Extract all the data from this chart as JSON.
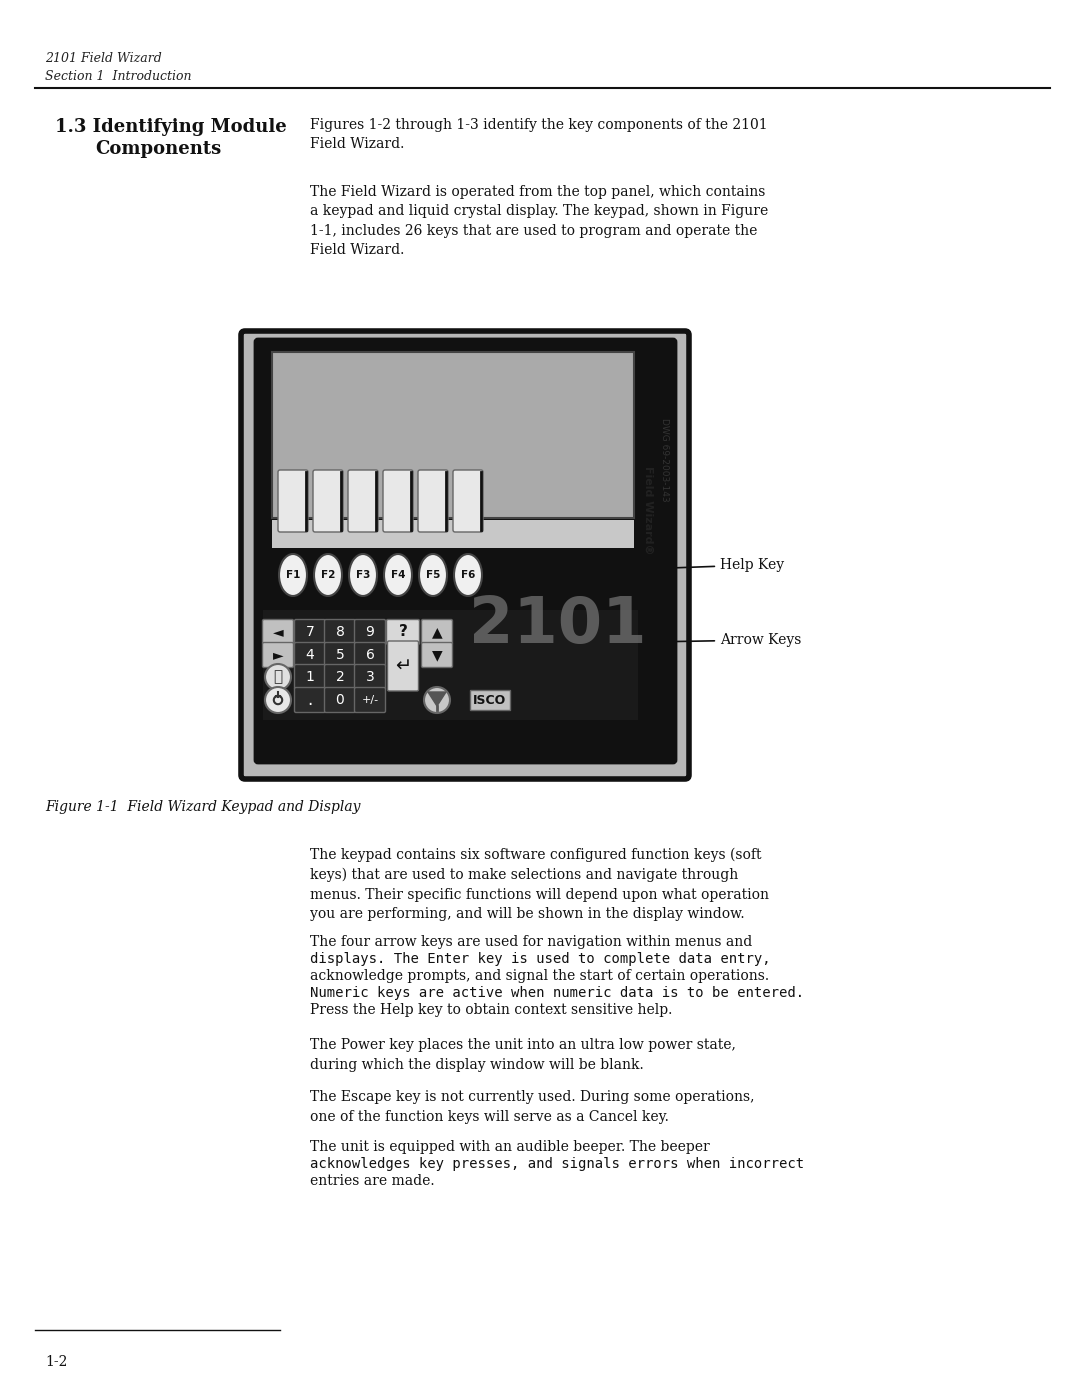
{
  "page_width": 10.8,
  "page_height": 13.97,
  "bg_color": "#ffffff",
  "header_line1": "2101 Field Wizard",
  "header_line2": "Section 1  Introduction",
  "para1": "Figures 1-2 through 1-3 identify the key components of the 2101\nField Wizard.",
  "para2": "The Field Wizard is operated from the top panel, which contains\na keypad and liquid crystal display. The keypad, shown in Figure\n1-1, includes 26 keys that are used to program and operate the\nField Wizard.",
  "figure_caption": "Figure 1-1  Field Wizard Keypad and Display",
  "body_para1": "The keypad contains six software configured function keys (soft\nkeys) that are used to make selections and navigate through\nmenus. Their specific functions will depend upon what operation\nyou are performing, and will be shown in the display window.",
  "body_para2_l1": "The four arrow keys are used for navigation within menus and",
  "body_para2_l2": "displays. The Enter key is used to complete data entry,",
  "body_para2_l3": "acknowledge prompts, and signal the start of certain operations.",
  "body_para2_l4": "Numeric keys are active when numeric data is to be entered.",
  "body_para2_l5": "Press the Help key to obtain context sensitive help.",
  "body_para3": "The Power key places the unit into an ultra low power state,\nduring which the display window will be blank.",
  "body_para4": "The Escape key is not currently used. During some operations,\none of the function keys will serve as a Cancel key.",
  "body_para5_l1": "The unit is equipped with an audible beeper. The beeper",
  "body_para5_l2": "acknowledges key presses, and signals errors when incorrect",
  "body_para5_l3": "entries are made.",
  "page_number": "1-2",
  "label_help": "Help Key",
  "label_arrow": "Arrow Keys",
  "device_label": "Field Wizard®",
  "dwg_label": "DWG 69-2003-143",
  "isco_label": "ISCO"
}
